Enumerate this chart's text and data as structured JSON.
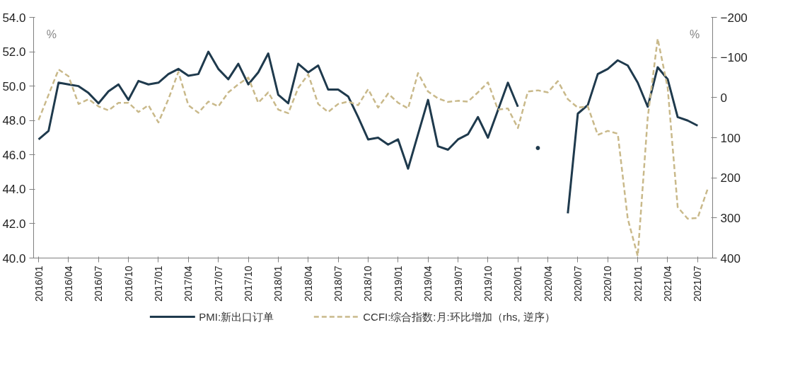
{
  "chart_data": {
    "type": "line",
    "categories": [
      "2016/01",
      null,
      null,
      "2016/04",
      null,
      null,
      "2016/07",
      null,
      null,
      "2016/10",
      null,
      null,
      "2017/01",
      null,
      null,
      "2017/04",
      null,
      null,
      "2017/07",
      null,
      null,
      "2017/10",
      null,
      null,
      "2018/01",
      null,
      null,
      "2018/04",
      null,
      null,
      "2018/07",
      null,
      null,
      "2018/10",
      null,
      null,
      "2019/01",
      null,
      null,
      "2019/04",
      null,
      null,
      "2019/07",
      null,
      null,
      "2019/10",
      null,
      null,
      "2020/01",
      null,
      null,
      "2020/04",
      null,
      null,
      "2020/07",
      null,
      null,
      "2020/10",
      null,
      null,
      "2021/01",
      null,
      null,
      "2021/04",
      null,
      null,
      "2021/07",
      null
    ],
    "series": [
      {
        "name": "PMI:新出口订单",
        "color": "#1f3a4d",
        "line_style": "solid",
        "values": [
          46.9,
          47.4,
          50.2,
          50.1,
          50.0,
          49.6,
          49.0,
          49.7,
          50.1,
          49.2,
          50.3,
          50.1,
          50.2,
          50.7,
          51.0,
          50.6,
          50.7,
          52.0,
          51.0,
          50.4,
          51.3,
          50.1,
          50.8,
          51.9,
          49.5,
          49.0,
          51.3,
          50.8,
          51.2,
          49.8,
          49.8,
          49.4,
          48.2,
          46.9,
          47.0,
          46.6,
          46.9,
          45.2,
          47.2,
          49.2,
          46.5,
          46.3,
          46.9,
          47.2,
          48.2,
          47.0,
          48.6,
          50.2,
          48.8,
          null,
          46.4,
          null,
          null,
          42.6,
          48.4,
          48.9,
          50.7,
          51.0,
          51.5,
          51.2,
          50.2,
          48.8,
          51.1,
          50.4,
          48.2,
          48.0,
          47.7,
          null
        ]
      },
      {
        "name": "CCFI:综合指数:月:环比增加（rhs, 逆序）",
        "color": "#c9b98a",
        "line_style": "dashed",
        "axis": "y2",
        "values": [
          56,
          -7,
          -70,
          -53,
          16,
          4,
          22,
          32,
          13,
          13,
          36,
          19,
          62,
          4,
          -64,
          19,
          38,
          10,
          22,
          -13,
          -33,
          -50,
          13,
          -13,
          30,
          39,
          -24,
          -58,
          16,
          36,
          16,
          10,
          19,
          -21,
          25,
          -10,
          13,
          27,
          -61,
          -15,
          2,
          11,
          8,
          10,
          -13,
          -38,
          30,
          27,
          76,
          -15,
          -18,
          -13,
          -41,
          4,
          25,
          22,
          93,
          83,
          90,
          302,
          395,
          50,
          -147,
          -24,
          273,
          302,
          300,
          228
        ]
      }
    ],
    "ylim": [
      40,
      54
    ],
    "yticks": [
      {
        "value": 40,
        "label": "40.0"
      },
      {
        "value": 42,
        "label": "42.0"
      },
      {
        "value": 44,
        "label": "44.0"
      },
      {
        "value": 46,
        "label": "46.0"
      },
      {
        "value": 48,
        "label": "48.0"
      },
      {
        "value": 50,
        "label": "50.0"
      },
      {
        "value": 52,
        "label": "52.0"
      },
      {
        "value": 54,
        "label": "54.0"
      }
    ],
    "y2lim": [
      400,
      -200
    ],
    "y2ticks": [
      -200,
      -100,
      0,
      100,
      200,
      300,
      400
    ],
    "annotations": [
      "%",
      "%"
    ],
    "legend": "bottom",
    "grid": false
  }
}
